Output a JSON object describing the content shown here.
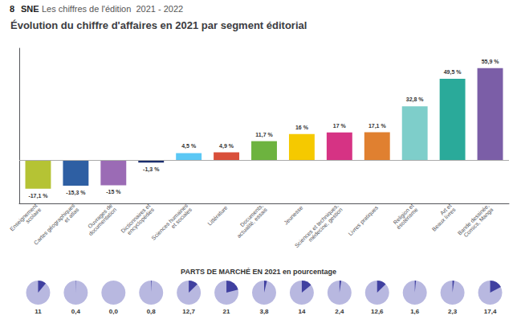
{
  "chart_data": [
    {
      "type": "bar",
      "title": "Évolution du chiffre d'affaires en 2021 par segment éditorial",
      "annotations": [
        "8",
        "SNE",
        "Les chiffres de l'édition  2021 - 2022"
      ],
      "categories": [
        "Enseignement\nscolaire",
        "Cartes géographiques\net atlas",
        "Ouvrages de\ndocumentation",
        "Dictionnaires et\nencyclopédies",
        "Sciences humaines\net sociales",
        "Littérature",
        "Documents,\nactualité, essais",
        "Jeunesse",
        "Sciences et techniques,\nmédecine, gestion",
        "Livres pratiques",
        "Religion et\nésotérisme",
        "Art et\nBeaux livres",
        "Bande dessinée,\nComics, Manga"
      ],
      "values": [
        -17.1,
        -15.3,
        -15.0,
        -1.3,
        4.5,
        4.9,
        11.7,
        16.0,
        17.0,
        17.1,
        32.8,
        49.5,
        55.9
      ],
      "value_labels": [
        "-17,1 %",
        "-15,3 %",
        "-15 %",
        "-1,3 %",
        "4,5 %",
        "4,9 %",
        "11,7 %",
        "16 %",
        "17 %",
        "17,1 %",
        "32,8 %",
        "49,5 %",
        "55,9 %"
      ],
      "colors": [
        "#b5c334",
        "#2e5fa3",
        "#9b6bb5",
        "#1a2d6e",
        "#5bc8f5",
        "#d94f3a",
        "#6db33f",
        "#f5c900",
        "#d63384",
        "#e08030",
        "#7ececa",
        "#2aaa9a",
        "#7b5ea7"
      ],
      "ylim": [
        -26,
        68
      ],
      "tick_labels": "x",
      "data_labels": true
    },
    {
      "type": "pie",
      "title": "PARTS DE MARCHÉ EN 2021 en pourcentage",
      "values": [
        11,
        0.4,
        0.0,
        0.8,
        12.7,
        21,
        3.8,
        14,
        2.4,
        12.6,
        1.6,
        2.3,
        17.4
      ],
      "value_labels": [
        "11",
        "0,4",
        "0,0",
        "0,8",
        "12,7",
        "21",
        "3,8",
        "14",
        "2,4",
        "12,6",
        "1,6",
        "2,3",
        "17,4"
      ],
      "colors": [
        "#4040a0",
        "#b8b8e0"
      ],
      "ylim": [
        0,
        100
      ],
      "data_labels": true
    }
  ]
}
